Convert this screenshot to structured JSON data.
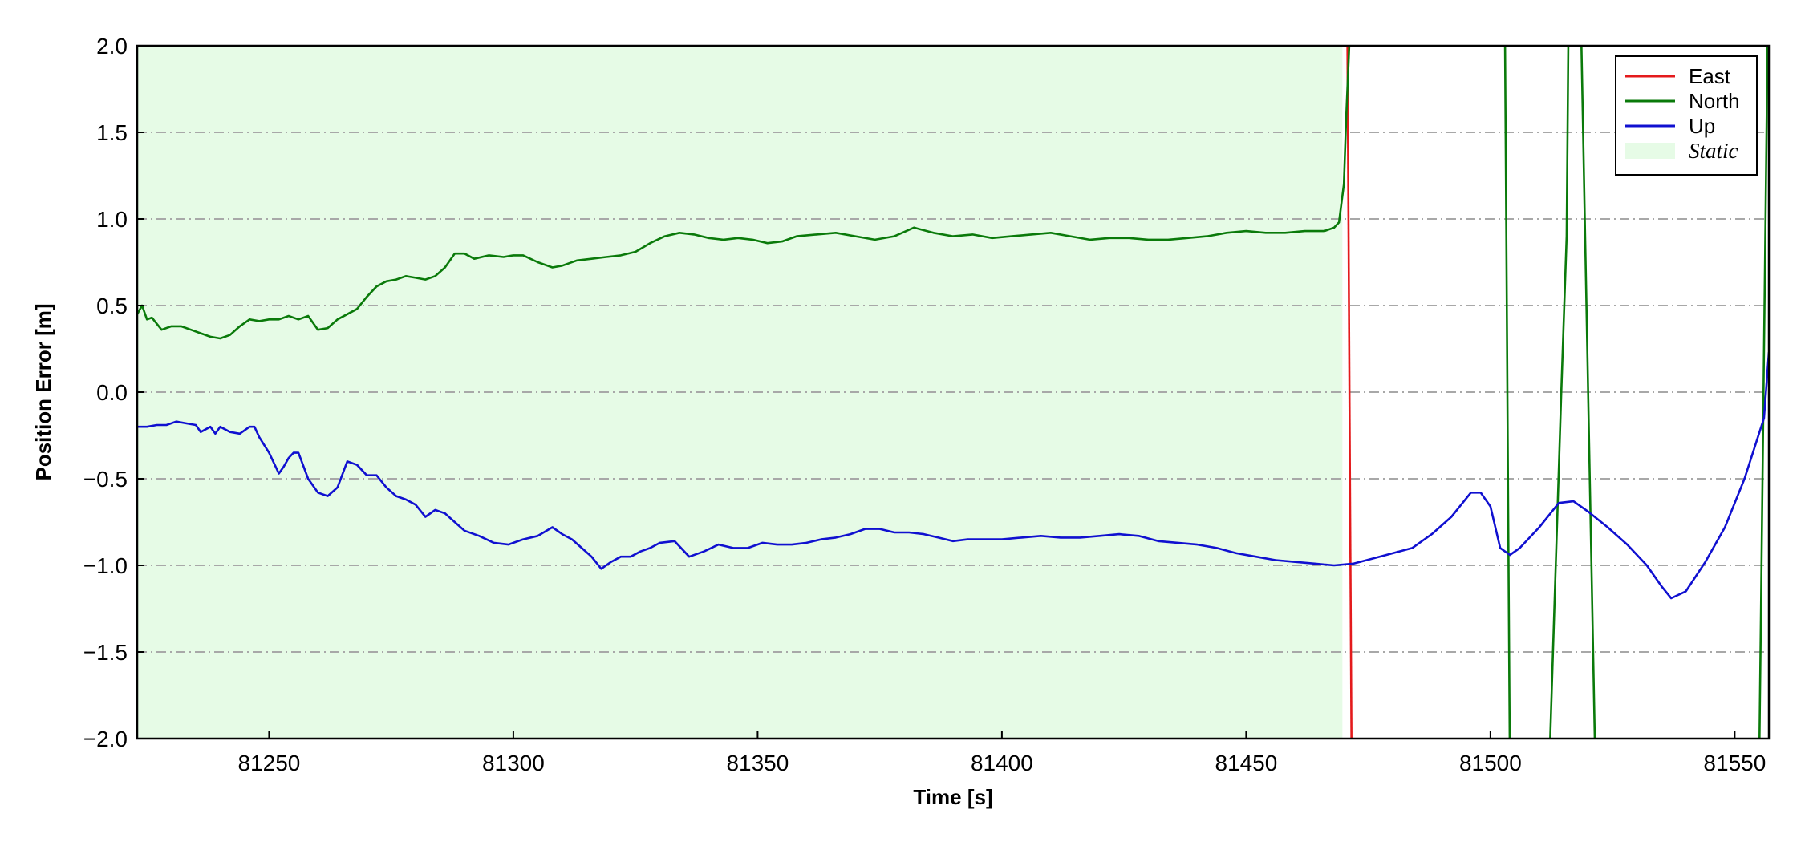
{
  "chart_data": {
    "type": "line",
    "title": "",
    "xlabel": "Time [s]",
    "ylabel": "Position Error [m]",
    "xlim": [
      81223,
      81557
    ],
    "ylim": [
      -2.0,
      2.0
    ],
    "xticks": [
      81250,
      81300,
      81350,
      81400,
      81450,
      81500,
      81550
    ],
    "xtick_labels": [
      "81250",
      "81300",
      "81350",
      "81400",
      "81450",
      "81500",
      "81550"
    ],
    "yticks": [
      2.0,
      1.5,
      1.0,
      0.5,
      0.0,
      -0.5,
      -1.0,
      -1.5,
      -2.0
    ],
    "ytick_labels": [
      "2.0",
      "1.5",
      "1.0",
      "0.5",
      "0.0",
      "−0.5",
      "−1.0",
      "−1.5",
      "−2.0"
    ],
    "grid": "horizontal dash-dot",
    "legend_position": "top-right",
    "static_region": {
      "label": "Static",
      "x": [
        81223,
        81469.7
      ],
      "color": "#e6fbe6"
    },
    "series": [
      {
        "name": "East",
        "color": "#e41a1c",
        "x": [
          81470.7,
          81471.6
        ],
        "y": [
          2.2,
          -2.2
        ]
      },
      {
        "name": "North",
        "color": "#0a7a0a",
        "x": [
          81223,
          81224,
          81225,
          81226,
          81228,
          81230,
          81232,
          81234,
          81236,
          81238,
          81240,
          81242,
          81244,
          81246,
          81248,
          81250,
          81252,
          81254,
          81256,
          81258,
          81260,
          81262,
          81264,
          81266,
          81268,
          81270,
          81272,
          81274,
          81276,
          81278,
          81280,
          81282,
          81284,
          81286,
          81288,
          81290,
          81292,
          81295,
          81298,
          81300,
          81302,
          81305,
          81308,
          81310,
          81313,
          81316,
          81319,
          81322,
          81325,
          81328,
          81331,
          81334,
          81337,
          81340,
          81343,
          81346,
          81349,
          81352,
          81355,
          81358,
          81362,
          81366,
          81370,
          81374,
          81378,
          81382,
          81386,
          81390,
          81394,
          81398,
          81402,
          81406,
          81410,
          81414,
          81418,
          81422,
          81426,
          81430,
          81434,
          81438,
          81442,
          81446,
          81450,
          81454,
          81458,
          81462,
          81466,
          81468,
          81469,
          81470,
          81470.5,
          81471.1,
          81471.6,
          81502.4,
          81503.0,
          81504.0,
          81512.0,
          81514.5,
          81515.6,
          81516.0,
          81518.5,
          81521.5,
          81555,
          81556.8
        ],
        "y": [
          0.45,
          0.5,
          0.42,
          0.43,
          0.36,
          0.38,
          0.38,
          0.36,
          0.34,
          0.32,
          0.31,
          0.33,
          0.38,
          0.42,
          0.41,
          0.42,
          0.42,
          0.44,
          0.42,
          0.44,
          0.36,
          0.37,
          0.42,
          0.45,
          0.48,
          0.55,
          0.61,
          0.64,
          0.65,
          0.67,
          0.66,
          0.65,
          0.67,
          0.72,
          0.8,
          0.8,
          0.77,
          0.79,
          0.78,
          0.79,
          0.79,
          0.75,
          0.72,
          0.73,
          0.76,
          0.77,
          0.78,
          0.79,
          0.81,
          0.86,
          0.9,
          0.92,
          0.91,
          0.89,
          0.88,
          0.89,
          0.88,
          0.86,
          0.87,
          0.9,
          0.91,
          0.92,
          0.9,
          0.88,
          0.9,
          0.95,
          0.92,
          0.9,
          0.91,
          0.89,
          0.9,
          0.91,
          0.92,
          0.9,
          0.88,
          0.89,
          0.89,
          0.88,
          0.88,
          0.89,
          0.9,
          0.92,
          0.93,
          0.92,
          0.92,
          0.93,
          0.93,
          0.95,
          0.98,
          1.2,
          1.6,
          2.0,
          2.2,
          2.2,
          2.0,
          -2.2,
          -2.2,
          0.0,
          0.9,
          2.2,
          2.2,
          -2.2,
          -2.2,
          2.2
        ]
      },
      {
        "name": "Up",
        "color": "#1010d0",
        "x": [
          81223,
          81225,
          81227,
          81229,
          81231,
          81233,
          81235,
          81236,
          81238,
          81239,
          81240,
          81242,
          81244,
          81246,
          81247,
          81248,
          81250,
          81252,
          81253,
          81254,
          81255,
          81256,
          81258,
          81260,
          81262,
          81264,
          81266,
          81268,
          81270,
          81272,
          81274,
          81276,
          81278,
          81280,
          81282,
          81284,
          81286,
          81288,
          81290,
          81293,
          81296,
          81299,
          81302,
          81305,
          81308,
          81310,
          81312,
          81314,
          81316,
          81318,
          81320,
          81322,
          81324,
          81326,
          81328,
          81330,
          81333,
          81336,
          81339,
          81342,
          81345,
          81348,
          81351,
          81354,
          81357,
          81360,
          81363,
          81366,
          81369,
          81372,
          81375,
          81378,
          81381,
          81384,
          81387,
          81390,
          81393,
          81396,
          81400,
          81404,
          81408,
          81412,
          81416,
          81420,
          81424,
          81428,
          81432,
          81436,
          81440,
          81444,
          81448,
          81452,
          81456,
          81460,
          81464,
          81468,
          81472,
          81476,
          81480,
          81484,
          81488,
          81492,
          81496,
          81498,
          81500,
          81501,
          81502,
          81504,
          81506,
          81510,
          81514,
          81517,
          81520,
          81524,
          81528,
          81532,
          81535,
          81537,
          81540,
          81544,
          81548,
          81552,
          81556,
          81557
        ],
        "y": [
          -0.2,
          -0.2,
          -0.19,
          -0.19,
          -0.17,
          -0.18,
          -0.19,
          -0.23,
          -0.2,
          -0.24,
          -0.2,
          -0.23,
          -0.24,
          -0.2,
          -0.2,
          -0.26,
          -0.35,
          -0.47,
          -0.43,
          -0.38,
          -0.35,
          -0.35,
          -0.5,
          -0.58,
          -0.6,
          -0.55,
          -0.4,
          -0.42,
          -0.48,
          -0.48,
          -0.55,
          -0.6,
          -0.62,
          -0.65,
          -0.72,
          -0.68,
          -0.7,
          -0.75,
          -0.8,
          -0.83,
          -0.87,
          -0.88,
          -0.85,
          -0.83,
          -0.78,
          -0.82,
          -0.85,
          -0.9,
          -0.95,
          -1.02,
          -0.98,
          -0.95,
          -0.95,
          -0.92,
          -0.9,
          -0.87,
          -0.86,
          -0.95,
          -0.92,
          -0.88,
          -0.9,
          -0.9,
          -0.87,
          -0.88,
          -0.88,
          -0.87,
          -0.85,
          -0.84,
          -0.82,
          -0.79,
          -0.79,
          -0.81,
          -0.81,
          -0.82,
          -0.84,
          -0.86,
          -0.85,
          -0.85,
          -0.85,
          -0.84,
          -0.83,
          -0.84,
          -0.84,
          -0.83,
          -0.82,
          -0.83,
          -0.86,
          -0.87,
          -0.88,
          -0.9,
          -0.93,
          -0.95,
          -0.97,
          -0.98,
          -0.99,
          -1.0,
          -0.99,
          -0.96,
          -0.93,
          -0.9,
          -0.82,
          -0.72,
          -0.58,
          -0.58,
          -0.66,
          -0.78,
          -0.9,
          -0.94,
          -0.9,
          -0.78,
          -0.64,
          -0.63,
          -0.69,
          -0.78,
          -0.88,
          -1.0,
          -1.12,
          -1.19,
          -1.15,
          -0.98,
          -0.78,
          -0.5,
          -0.15,
          0.23
        ]
      }
    ]
  }
}
